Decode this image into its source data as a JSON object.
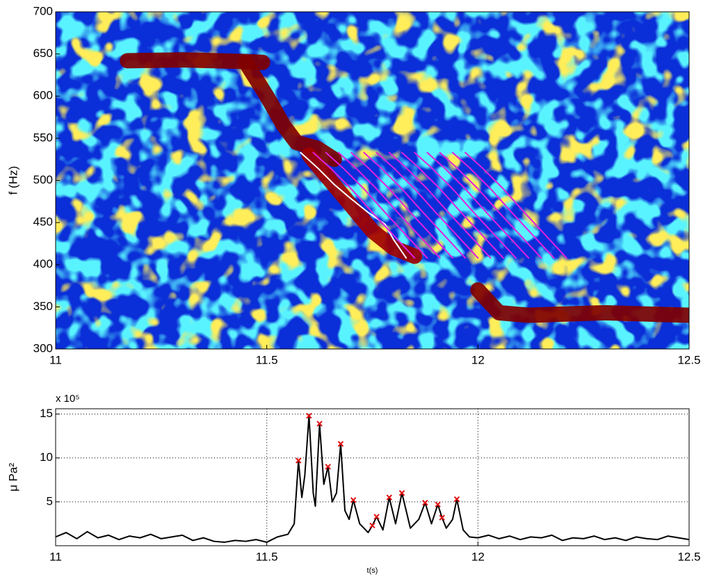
{
  "chart_data": [
    {
      "type": "spectrogram",
      "ylabel": "f (Hz)",
      "xlim": [
        11,
        12.5
      ],
      "xticks": [
        11,
        11.5,
        12,
        12.5
      ],
      "ylim": [
        300,
        700
      ],
      "yticks": [
        300,
        350,
        400,
        450,
        500,
        550,
        600,
        650,
        700
      ],
      "tracks": [
        {
          "color": "#800000",
          "x": [
            11.17,
            11.3,
            11.45,
            11.49
          ],
          "values": [
            642,
            643,
            641,
            640
          ]
        },
        {
          "color": "#800000",
          "x": [
            11.45,
            11.5,
            11.54,
            11.57,
            11.62,
            11.66
          ],
          "values": [
            640,
            600,
            565,
            545,
            538,
            525
          ]
        },
        {
          "color": "#a00000",
          "x": [
            11.6,
            11.65,
            11.7,
            11.75,
            11.8,
            11.85
          ],
          "values": [
            530,
            500,
            470,
            440,
            420,
            410
          ]
        },
        {
          "color": "#800000",
          "x": [
            12.0,
            12.05,
            12.12,
            12.3,
            12.5
          ],
          "values": [
            370,
            343,
            340,
            343,
            340
          ]
        }
      ],
      "series": [
        {
          "color": "#ffffff",
          "x": [
            11.58,
            11.62,
            11.66,
            11.7,
            11.74,
            11.78,
            11.8,
            11.83
          ],
          "values": [
            533,
            515,
            495,
            478,
            462,
            448,
            430,
            408
          ]
        },
        {
          "color": "#e020e0",
          "x": [
            11.61,
            11.65,
            11.7,
            11.75,
            11.8,
            11.85
          ],
          "values": [
            533,
            515,
            490,
            462,
            435,
            408
          ]
        },
        {
          "color": "#e020e0",
          "x": [
            11.64,
            11.68,
            11.73,
            11.78,
            11.83,
            11.88
          ],
          "values": [
            533,
            515,
            490,
            462,
            435,
            408
          ]
        },
        {
          "color": "#e020e0",
          "x": [
            11.67,
            11.71,
            11.76,
            11.81,
            11.86,
            11.91
          ],
          "values": [
            533,
            515,
            490,
            462,
            435,
            408
          ]
        },
        {
          "color": "#e020e0",
          "x": [
            11.7,
            11.74,
            11.79,
            11.84,
            11.89,
            11.94
          ],
          "values": [
            533,
            515,
            490,
            462,
            435,
            408
          ]
        },
        {
          "color": "#e020e0",
          "x": [
            11.73,
            11.77,
            11.82,
            11.87,
            11.92,
            11.97
          ],
          "values": [
            533,
            515,
            490,
            462,
            435,
            408
          ]
        },
        {
          "color": "#e020e0",
          "x": [
            11.76,
            11.8,
            11.85,
            11.9,
            11.95,
            12.0
          ],
          "values": [
            533,
            515,
            490,
            462,
            435,
            408
          ]
        },
        {
          "color": "#e020e0",
          "x": [
            11.79,
            11.83,
            11.88,
            11.93,
            11.98,
            12.03
          ],
          "values": [
            533,
            515,
            490,
            462,
            435,
            408
          ]
        },
        {
          "color": "#e020e0",
          "x": [
            11.82,
            11.86,
            11.91,
            11.96,
            12.01,
            12.06
          ],
          "values": [
            533,
            515,
            490,
            462,
            435,
            408
          ]
        },
        {
          "color": "#e020e0",
          "x": [
            11.85,
            11.89,
            11.94,
            11.99,
            12.04,
            12.09
          ],
          "values": [
            533,
            515,
            490,
            462,
            435,
            408
          ]
        },
        {
          "color": "#e020e0",
          "x": [
            11.88,
            11.92,
            11.97,
            12.02,
            12.07,
            12.12
          ],
          "values": [
            533,
            515,
            490,
            462,
            435,
            408
          ]
        },
        {
          "color": "#e020e0",
          "x": [
            11.91,
            11.95,
            12.0,
            12.05,
            12.1,
            12.15
          ],
          "values": [
            533,
            515,
            490,
            462,
            435,
            408
          ]
        },
        {
          "color": "#e020e0",
          "x": [
            11.94,
            11.98,
            12.03,
            12.08,
            12.13,
            12.18
          ],
          "values": [
            533,
            515,
            490,
            462,
            435,
            408
          ]
        },
        {
          "color": "#e020e0",
          "x": [
            11.97,
            12.01,
            12.06,
            12.11,
            12.16,
            12.21
          ],
          "values": [
            533,
            515,
            490,
            462,
            435,
            408
          ]
        }
      ]
    },
    {
      "type": "line",
      "ylabel": "μ Pa²",
      "xlabel": "t(s)",
      "exponent": "x 10⁵",
      "grid": true,
      "xlim": [
        11,
        12.5
      ],
      "xticks": [
        11,
        11.5,
        12,
        12.5
      ],
      "ylim": [
        0,
        15.6
      ],
      "yticks": [
        5,
        10,
        15
      ],
      "series": [
        {
          "color": "#000000",
          "style": "line",
          "x": [
            11.0,
            11.025,
            11.05,
            11.075,
            11.1,
            11.125,
            11.15,
            11.175,
            11.2,
            11.225,
            11.25,
            11.275,
            11.3,
            11.325,
            11.35,
            11.375,
            11.4,
            11.425,
            11.45,
            11.475,
            11.5,
            11.525,
            11.55,
            11.565,
            11.575,
            11.583,
            11.59,
            11.6,
            11.61,
            11.615,
            11.625,
            11.635,
            11.645,
            11.655,
            11.665,
            11.675,
            11.685,
            11.695,
            11.705,
            11.72,
            11.74,
            11.75,
            11.76,
            11.775,
            11.79,
            11.805,
            11.82,
            11.84,
            11.86,
            11.875,
            11.89,
            11.905,
            11.915,
            11.925,
            11.94,
            11.95,
            11.965,
            11.98,
            12.0,
            12.025,
            12.05,
            12.075,
            12.1,
            12.125,
            12.15,
            12.175,
            12.2,
            12.225,
            12.25,
            12.275,
            12.3,
            12.325,
            12.35,
            12.375,
            12.4,
            12.425,
            12.45,
            12.475,
            12.5
          ],
          "values": [
            1.0,
            1.5,
            0.8,
            1.6,
            0.9,
            1.2,
            0.7,
            1.1,
            0.9,
            1.3,
            0.8,
            1.0,
            1.2,
            0.6,
            0.9,
            0.5,
            0.4,
            0.6,
            0.5,
            0.7,
            0.4,
            1.0,
            1.3,
            2.5,
            9.7,
            5.5,
            8.0,
            14.8,
            6.0,
            4.5,
            13.9,
            7.0,
            9.0,
            5.0,
            6.0,
            11.6,
            4.0,
            3.0,
            5.2,
            2.5,
            1.5,
            2.3,
            3.3,
            1.8,
            5.5,
            2.5,
            6.0,
            2.0,
            3.0,
            4.9,
            2.5,
            4.7,
            3.2,
            2.0,
            3.0,
            5.3,
            1.8,
            1.0,
            0.9,
            1.2,
            0.8,
            1.1,
            0.7,
            1.0,
            0.9,
            1.2,
            0.6,
            0.9,
            0.8,
            1.1,
            0.7,
            0.9,
            0.6,
            1.0,
            0.8,
            0.7,
            1.1,
            0.9,
            0.7
          ]
        },
        {
          "color": "#e01010",
          "style": "markers",
          "x": [
            11.575,
            11.6,
            11.625,
            11.645,
            11.675,
            11.705,
            11.75,
            11.76,
            11.79,
            11.82,
            11.875,
            11.905,
            11.915,
            11.95
          ],
          "values": [
            9.7,
            14.8,
            13.9,
            9.0,
            11.6,
            5.2,
            2.3,
            3.3,
            5.5,
            6.0,
            4.9,
            4.7,
            3.2,
            5.3
          ]
        }
      ]
    }
  ]
}
